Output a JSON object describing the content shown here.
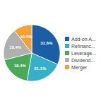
{
  "chart_data": {
    "type": "pie",
    "categories": [
      "Add-on A...",
      "Refinanc...",
      "Leverage...",
      "Dividend...",
      "Merger"
    ],
    "values": [
      31.6,
      21.1,
      18.4,
      18.4,
      10.5
    ],
    "value_labels": [
      "31.6%",
      "21.1%",
      "18.4%",
      "18.4%",
      "10.5%"
    ],
    "colors": [
      "#1b5ea6",
      "#36b0c9",
      "#4aaa59",
      "#b0b0b0",
      "#f4a035"
    ],
    "data_labels": true,
    "legend": "right"
  }
}
